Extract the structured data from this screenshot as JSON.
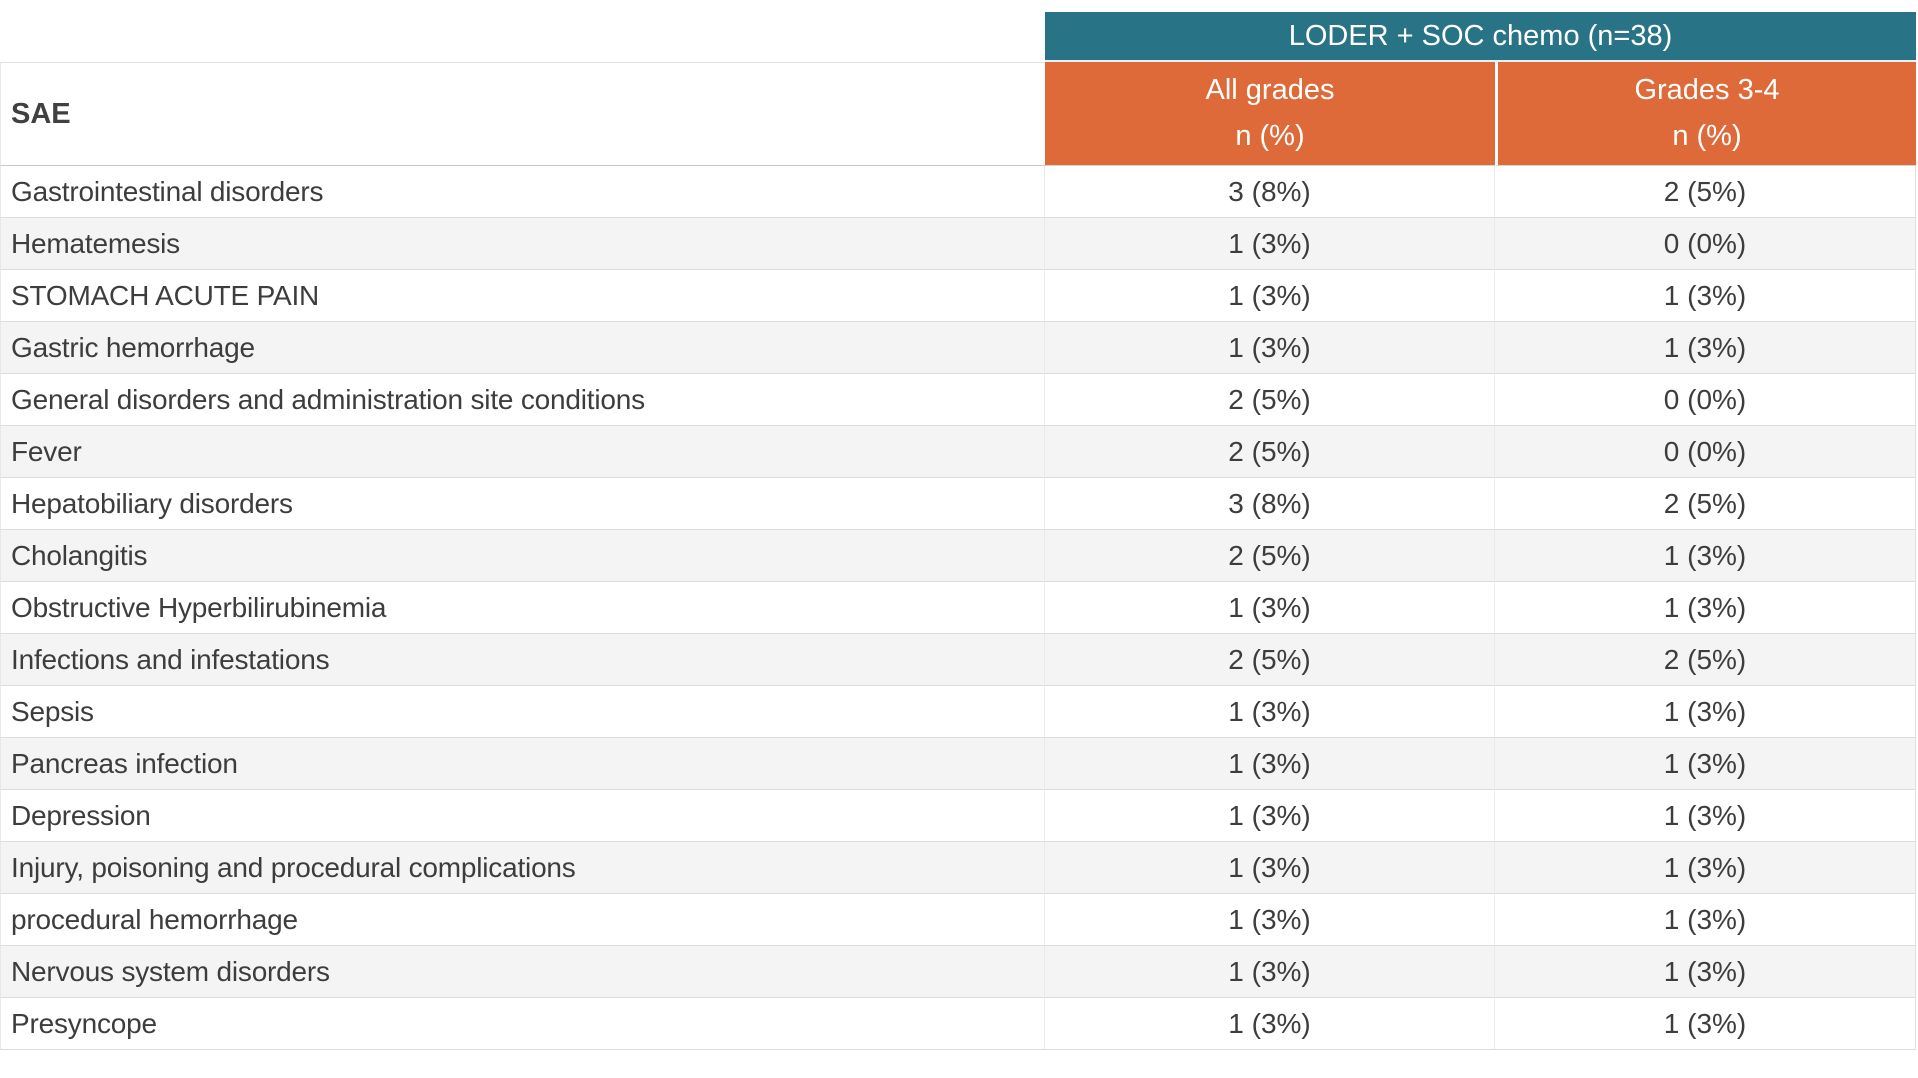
{
  "table": {
    "group_header": "LODER + SOC chemo (n=38)",
    "row_header": "SAE",
    "columns": [
      {
        "label": "All grades",
        "unit": "n (%)"
      },
      {
        "label": "Grades 3-4",
        "unit": "n (%)"
      }
    ],
    "rows": [
      {
        "sae": "Gastrointestinal disorders",
        "all_grades": "3 (8%)",
        "grades_3_4": "2 (5%)"
      },
      {
        "sae": "Hematemesis",
        "all_grades": "1 (3%)",
        "grades_3_4": "0 (0%)"
      },
      {
        "sae": "STOMACH ACUTE PAIN",
        "all_grades": "1 (3%)",
        "grades_3_4": "1 (3%)"
      },
      {
        "sae": "Gastric hemorrhage",
        "all_grades": "1 (3%)",
        "grades_3_4": "1 (3%)"
      },
      {
        "sae": "General disorders and administration site conditions",
        "all_grades": "2 (5%)",
        "grades_3_4": "0 (0%)"
      },
      {
        "sae": "Fever",
        "all_grades": "2 (5%)",
        "grades_3_4": "0 (0%)"
      },
      {
        "sae": "Hepatobiliary disorders",
        "all_grades": "3 (8%)",
        "grades_3_4": "2 (5%)"
      },
      {
        "sae": "Cholangitis",
        "all_grades": "2 (5%)",
        "grades_3_4": "1 (3%)"
      },
      {
        "sae": "Obstructive Hyperbilirubinemia",
        "all_grades": "1 (3%)",
        "grades_3_4": "1 (3%)"
      },
      {
        "sae": "Infections and infestations",
        "all_grades": "2 (5%)",
        "grades_3_4": "2 (5%)"
      },
      {
        "sae": "Sepsis",
        "all_grades": "1 (3%)",
        "grades_3_4": "1 (3%)"
      },
      {
        "sae": "Pancreas infection",
        "all_grades": "1 (3%)",
        "grades_3_4": "1 (3%)"
      },
      {
        "sae": "Depression",
        "all_grades": "1 (3%)",
        "grades_3_4": "1 (3%)"
      },
      {
        "sae": "Injury, poisoning and procedural complications",
        "all_grades": "1 (3%)",
        "grades_3_4": "1 (3%)"
      },
      {
        "sae": "procedural hemorrhage",
        "all_grades": "1 (3%)",
        "grades_3_4": "1 (3%)"
      },
      {
        "sae": "Nervous system disorders",
        "all_grades": "1 (3%)",
        "grades_3_4": "1 (3%)"
      },
      {
        "sae": "Presyncope",
        "all_grades": "1 (3%)",
        "grades_3_4": "1 (3%)"
      }
    ]
  },
  "colors": {
    "group_header_bg": "#287385",
    "column_header_bg": "#DE6A39",
    "header_text": "#FFFFFF",
    "body_text": "#3D3D3D",
    "row_alt_bg": "#F4F4F4",
    "grid_line": "#DCDCDC"
  }
}
